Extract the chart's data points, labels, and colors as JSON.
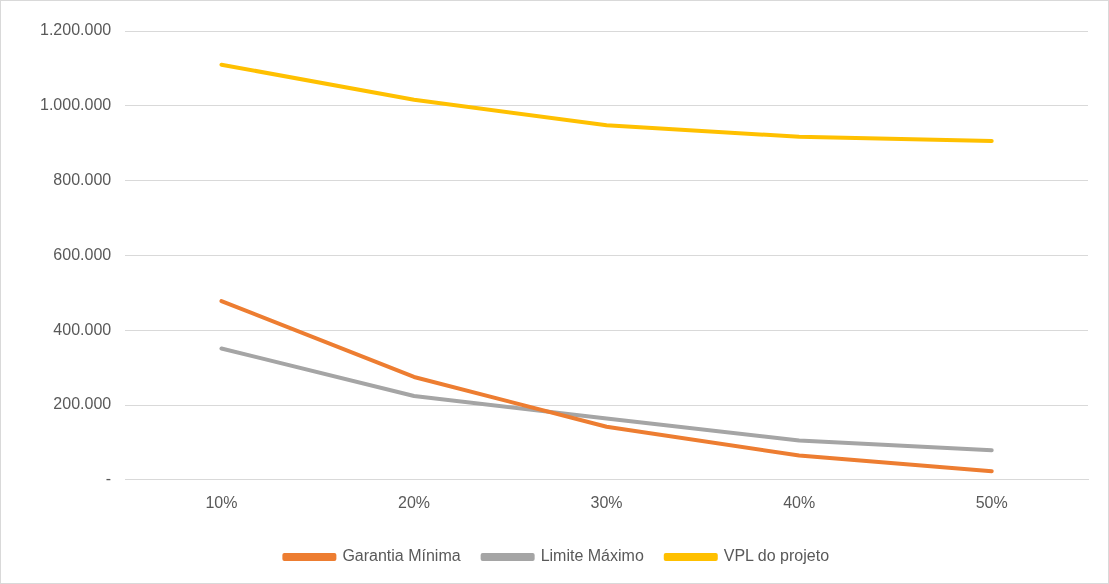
{
  "chart_data": {
    "type": "line",
    "categories": [
      "10%",
      "20%",
      "30%",
      "40%",
      "50%"
    ],
    "series": [
      {
        "name": "Garantia Mínima",
        "color": "#ed7d31",
        "values": [
          478000,
          275000,
          142000,
          65000,
          23000
        ]
      },
      {
        "name": "Limite Máximo",
        "color": "#a5a5a5",
        "values": [
          351000,
          224000,
          164000,
          105000,
          79000
        ]
      },
      {
        "name": "VPL do projeto",
        "color": "#ffc000",
        "values": [
          1110000,
          1016000,
          948000,
          917000,
          906000
        ]
      }
    ],
    "ylim": [
      0,
      1200000
    ],
    "yticks": [
      {
        "value": 0,
        "label": "-"
      },
      {
        "value": 200000,
        "label": "200.000"
      },
      {
        "value": 400000,
        "label": "400.000"
      },
      {
        "value": 600000,
        "label": "600.000"
      },
      {
        "value": 800000,
        "label": "800.000"
      },
      {
        "value": 1000000,
        "label": "1.000.000"
      },
      {
        "value": 1200000,
        "label": "1.200.000"
      }
    ],
    "grid": "y",
    "legend": "bottom",
    "marker": "none",
    "line_style": "solid"
  }
}
